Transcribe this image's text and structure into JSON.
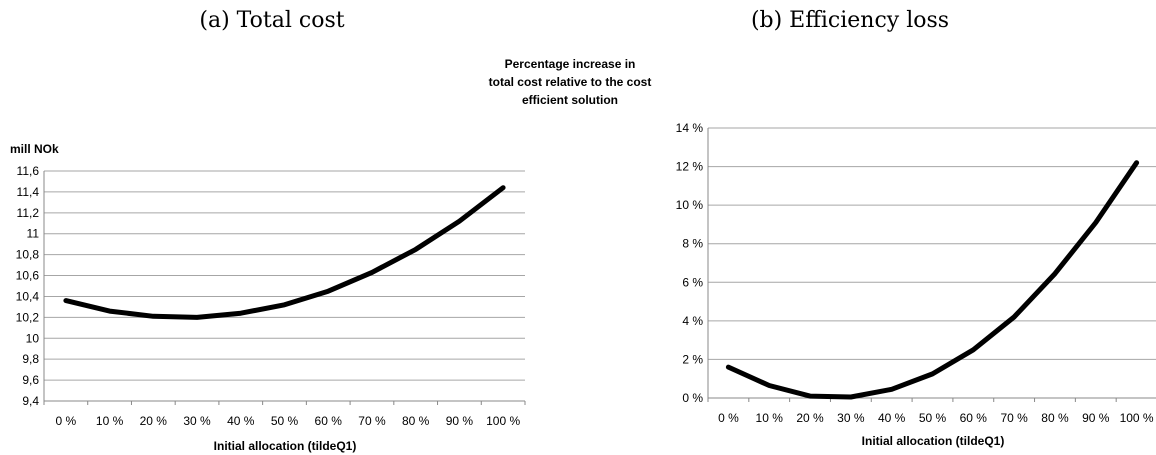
{
  "captions": {
    "a": "(a) Total cost",
    "b": "(b) Efficiency loss"
  },
  "chart_data": [
    {
      "type": "line",
      "ylabel": "mill NOk",
      "xlabel": "Initial allocation (tildeQ1)",
      "categories": [
        "0 %",
        "10 %",
        "20 %",
        "30 %",
        "40 %",
        "50 %",
        "60 %",
        "70 %",
        "80 %",
        "90 %",
        "100 %"
      ],
      "yticks": [
        "11,6",
        "11,4",
        "11,2",
        "11",
        "10,8",
        "10,6",
        "10,4",
        "10,2",
        "10",
        "9,8",
        "9,6",
        "9,4"
      ],
      "ylim": [
        9.4,
        11.6
      ],
      "grid": true,
      "series": [
        {
          "values": [
            10.36,
            10.26,
            10.21,
            10.2,
            10.24,
            10.32,
            10.45,
            10.63,
            10.85,
            11.12,
            11.44
          ]
        }
      ]
    },
    {
      "type": "line",
      "ylabel_lines": [
        "Percentage increase in",
        "total cost relative to the cost",
        "efficient solution"
      ],
      "xlabel": "Initial allocation (tildeQ1)",
      "categories": [
        "0 %",
        "10 %",
        "20 %",
        "30 %",
        "40 %",
        "50 %",
        "60 %",
        "70 %",
        "80 %",
        "90 %",
        "100 %"
      ],
      "yticks": [
        "14 %",
        "12 %",
        "10 %",
        "8 %",
        "6 %",
        "4 %",
        "2 %",
        "0 %"
      ],
      "ylim": [
        0,
        14
      ],
      "grid": true,
      "series": [
        {
          "values": [
            1.6,
            0.65,
            0.1,
            0.05,
            0.45,
            1.25,
            2.5,
            4.2,
            6.45,
            9.1,
            12.2
          ]
        }
      ]
    }
  ]
}
